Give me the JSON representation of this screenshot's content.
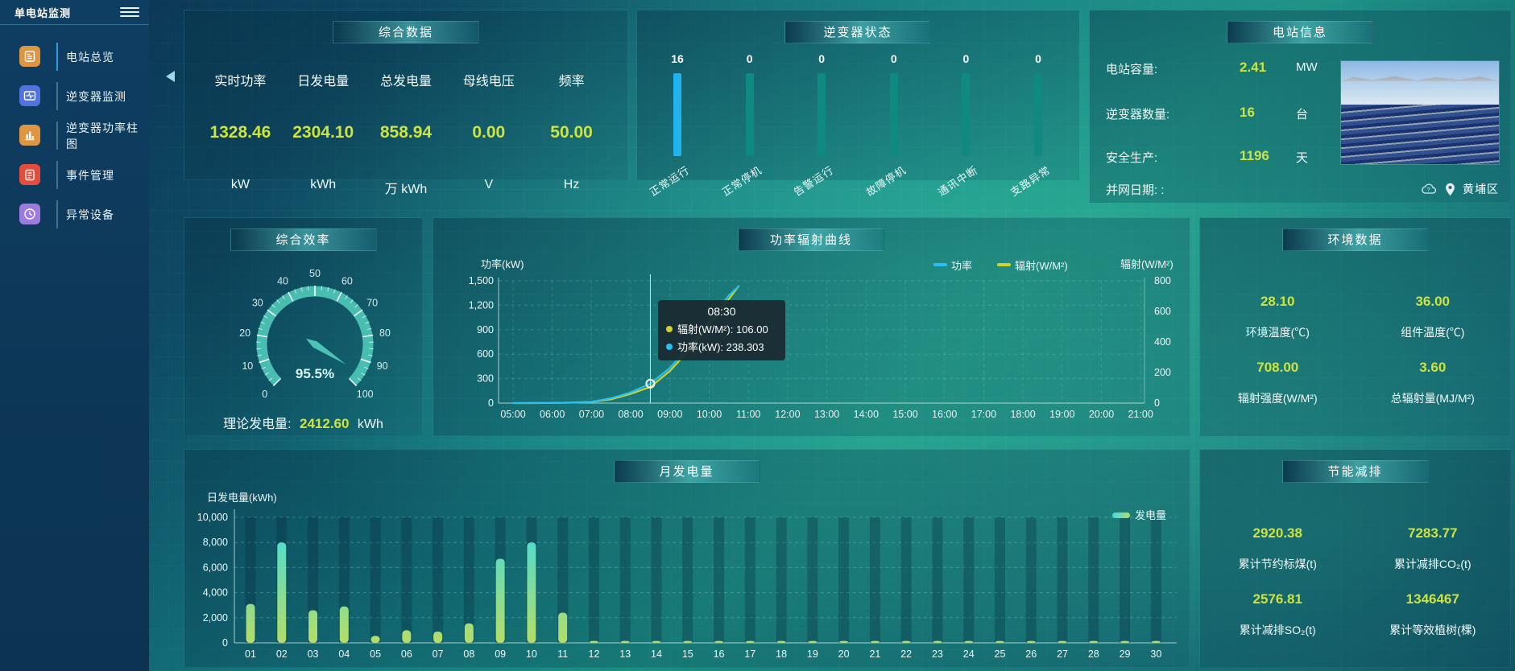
{
  "app": {
    "title": "单电站监测"
  },
  "sidebar": {
    "items": [
      {
        "label": "电站总览",
        "icon": "station-overview-icon",
        "icon_color": "#e09543",
        "active": true
      },
      {
        "label": "逆变器监测",
        "icon": "inverter-monitor-icon",
        "icon_color": "#5272dd",
        "active": false
      },
      {
        "label": "逆变器功率柱图",
        "icon": "inverter-power-chart-icon",
        "icon_color": "#e09543",
        "active": false
      },
      {
        "label": "事件管理",
        "icon": "event-management-icon",
        "icon_color": "#e64c3c",
        "active": false
      },
      {
        "label": "异常设备",
        "icon": "abnormal-device-icon",
        "icon_color": "#9d7bdf",
        "active": false
      }
    ]
  },
  "summary": {
    "title": "综合数据",
    "metrics": [
      {
        "label": "实时功率",
        "value": "1328.46",
        "unit": "kW"
      },
      {
        "label": "日发电量",
        "value": "2304.10",
        "unit": "kWh"
      },
      {
        "label": "总发电量",
        "value": "858.94",
        "unit": "万 kWh"
      },
      {
        "label": "母线电压",
        "value": "0.00",
        "unit": "V"
      },
      {
        "label": "频率",
        "value": "50.00",
        "unit": "Hz"
      }
    ]
  },
  "station_info": {
    "title": "电站信息",
    "rows": [
      {
        "label": "电站容量:",
        "value": "2.41",
        "unit": "MW"
      },
      {
        "label": "逆变器数量:",
        "value": "16",
        "unit": "台"
      },
      {
        "label": "安全生产:",
        "value": "1196",
        "unit": "天"
      },
      {
        "label": "并网日期: :",
        "value": "",
        "unit": ""
      }
    ],
    "location": "黄埔区"
  },
  "efficiency": {
    "footer_label": "理论发电量:",
    "footer_value": "2412.60",
    "footer_unit": "kWh"
  },
  "environment": {
    "title": "环境数据",
    "metrics": [
      {
        "value": "28.10",
        "label": "环境温度(℃)"
      },
      {
        "value": "36.00",
        "label": "组件温度(℃)"
      },
      {
        "value": "708.00",
        "label": "辐射强度(W/M²)"
      },
      {
        "value": "3.60",
        "label": "总辐射量(MJ/M²)"
      }
    ]
  },
  "energy_saving": {
    "title": "节能减排",
    "metrics": [
      {
        "value": "2920.38",
        "label": "累计节约标煤(t)"
      },
      {
        "value": "7283.77",
        "label": "累计减排CO₂(t)"
      },
      {
        "value": "2576.81",
        "label": "累计减排SO₂(t)"
      },
      {
        "value": "1346467",
        "label": "累计等效植树(棵)"
      }
    ]
  },
  "colors": {
    "accent_yellow": "#cde43e",
    "power_blue": "#25c2f3",
    "radiation_yellow": "#cfd32a",
    "gauge_teal": "#4cc3b4",
    "inverter_active_bar": "#1fb4f0",
    "inverter_idle_bar": "#0f8a80",
    "monthly_bar_top": "#3edce0",
    "monthly_bar_bottom": "#b4dd67"
  },
  "chart_data": [
    {
      "id": "inverter_status",
      "type": "bar",
      "title": "逆变器状态",
      "unit": "台",
      "categories": [
        "正常运行",
        "正常停机",
        "告警运行",
        "故障停机",
        "通讯中断",
        "支路异常"
      ],
      "values": [
        16,
        0,
        0,
        0,
        0,
        0
      ],
      "note": "all bars drawn equal height; first bar highlighted blue"
    },
    {
      "id": "overall_efficiency",
      "type": "gauge",
      "title": "综合效率",
      "value": 95.5,
      "display": "95.5%",
      "min": 0,
      "max": 100,
      "tick_labels": [
        "0",
        "10",
        "20",
        "30",
        "40",
        "50",
        "60",
        "70",
        "80",
        "90",
        "100"
      ]
    },
    {
      "id": "power_radiation",
      "type": "line",
      "title": "功率辐射曲线",
      "x_hours": [
        5,
        5.5,
        6,
        6.5,
        7,
        7.5,
        8,
        8.5,
        9,
        9.5,
        10,
        10.5,
        10.75
      ],
      "x_axis_labels": [
        "05:00",
        "06:00",
        "07:00",
        "08:00",
        "09:00",
        "10:00",
        "11:00",
        "12:00",
        "13:00",
        "14:00",
        "15:00",
        "16:00",
        "17:00",
        "18:00",
        "19:00",
        "20:00",
        "21:00"
      ],
      "x_range": [
        5,
        21
      ],
      "series": [
        {
          "name": "功率",
          "axis": "left",
          "values": [
            0,
            1,
            2,
            5,
            15,
            60,
            130,
            238.3,
            430,
            700,
            1000,
            1320,
            1430
          ]
        },
        {
          "name": "辐射(W/M²)",
          "axis": "right",
          "values": [
            0,
            0,
            1,
            3,
            8,
            25,
            60,
            106,
            210,
            350,
            510,
            680,
            765
          ]
        }
      ],
      "left_axis": {
        "label": "功率(kW)",
        "ticks": [
          "0",
          "300",
          "600",
          "900",
          "1,200",
          "1,500"
        ],
        "max": 1500
      },
      "right_axis": {
        "label": "辐射(W/M²)",
        "ticks": [
          "0",
          "200",
          "400",
          "600",
          "800"
        ],
        "max": 800
      },
      "tooltip": {
        "title": "08:30",
        "x_hour": 8.5,
        "rows": [
          {
            "label": "辐射(W/M²)",
            "value": "106.00",
            "series": 1
          },
          {
            "label": "功率(kW)",
            "value": "238.303",
            "series": 0
          }
        ]
      }
    },
    {
      "id": "monthly_generation",
      "type": "bar",
      "title": "月发电量",
      "ylabel": "日发电量(kWh)",
      "legend": "发电量",
      "categories": [
        "01",
        "02",
        "03",
        "04",
        "05",
        "06",
        "07",
        "08",
        "09",
        "10",
        "11",
        "12",
        "13",
        "14",
        "15",
        "16",
        "17",
        "18",
        "19",
        "20",
        "21",
        "22",
        "23",
        "24",
        "25",
        "26",
        "27",
        "28",
        "29",
        "30"
      ],
      "values": [
        3100,
        8000,
        2600,
        2900,
        550,
        1000,
        900,
        1550,
        6700,
        8000,
        2400,
        150,
        150,
        150,
        150,
        150,
        150,
        150,
        150,
        150,
        150,
        150,
        150,
        150,
        150,
        150,
        150,
        150,
        150,
        150
      ],
      "yticks": [
        "0",
        "2,000",
        "4,000",
        "6,000",
        "8,000",
        "10,000"
      ],
      "ylim": [
        0,
        10000
      ]
    }
  ]
}
